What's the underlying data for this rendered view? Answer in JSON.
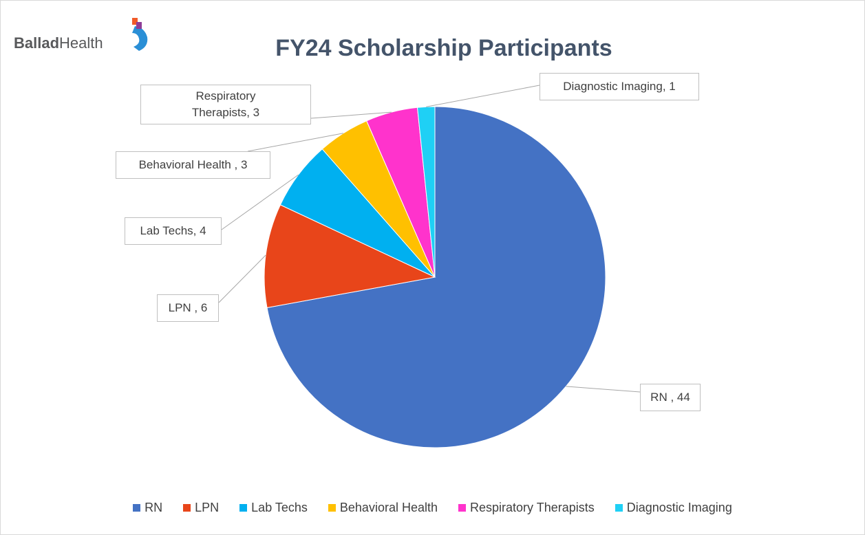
{
  "chart_data": {
    "type": "pie",
    "title": "FY24 Scholarship Participants",
    "logo": {
      "bold": "Ballad",
      "regular": "Health"
    },
    "categories": [
      "RN",
      "LPN",
      "Lab Techs",
      "Behavioral Health",
      "Respiratory Therapists",
      "Diagnostic Imaging"
    ],
    "values": [
      44,
      6,
      4,
      3,
      3,
      1
    ],
    "value_labels": [
      "RN , 44",
      "LPN , 6",
      "Lab Techs, 4",
      "Behavioral Health , 3",
      "Respiratory Therapists, 3",
      "Diagnostic Imaging, 1"
    ],
    "colors": [
      "#4472c4",
      "#e8451a",
      "#00b0f0",
      "#ffc000",
      "#ff33cc",
      "#1fd0f5"
    ],
    "legend": "bottom"
  }
}
